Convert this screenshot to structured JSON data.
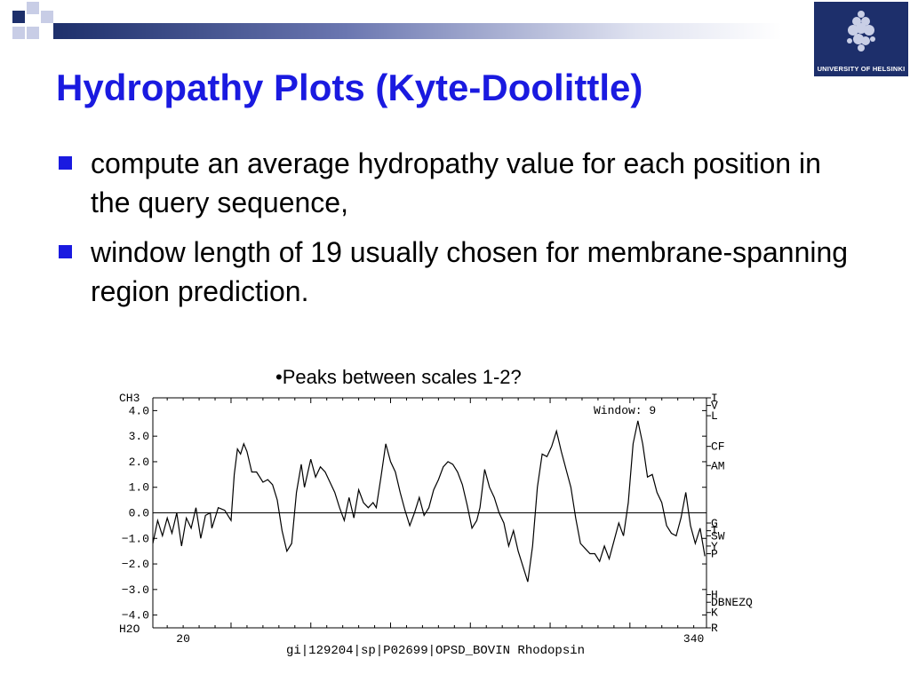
{
  "slide": {
    "title": "Hydropathy Plots (Kyte-Doolittle)",
    "bullets": [
      "compute an average hydropathy value for each position in the query sequence,",
      "window length of 19 usually chosen for membrane-spanning region prediction."
    ],
    "caption": "•Peaks between scales 1-2?",
    "logo_text": "UNIVERSITY OF HELSINKI",
    "colors": {
      "title": "#1a1ae0",
      "bullet": "#1a1ae0",
      "logo_bg": "#1d2f6b"
    }
  },
  "chart_data": {
    "type": "line",
    "top_label": "CH3",
    "bottom_label": "H2O",
    "window_label": "Window: 9",
    "xlabel": "gi|129204|sp|P02699|OPSD_BOVIN Rhodopsin",
    "x_tick_labels": [
      "20",
      "340"
    ],
    "xlim": [
      1,
      348
    ],
    "ylim": [
      -4.5,
      4.5
    ],
    "y_tick_labels": [
      "4.0",
      "3.0",
      "2.0",
      "1.0",
      "0.0",
      "−1.0",
      "−2.0",
      "−3.0",
      "−4.0"
    ],
    "y_ticks": [
      4,
      3,
      2,
      1,
      0,
      -1,
      -2,
      -3,
      -4
    ],
    "zero_line": true,
    "right_axis_labels": [
      {
        "text": "I",
        "y": 4.5
      },
      {
        "text": "V",
        "y": 4.2
      },
      {
        "text": "L",
        "y": 3.8
      },
      {
        "text": "CF",
        "y": 2.6
      },
      {
        "text": "AM",
        "y": 1.85
      },
      {
        "text": "G",
        "y": -0.4
      },
      {
        "text": "T",
        "y": -0.7
      },
      {
        "text": "SW",
        "y": -0.9
      },
      {
        "text": "Y",
        "y": -1.3
      },
      {
        "text": "P",
        "y": -1.6
      },
      {
        "text": "H",
        "y": -3.2
      },
      {
        "text": "DBNEZQ",
        "y": -3.5
      },
      {
        "text": "K",
        "y": -3.9
      },
      {
        "text": "R",
        "y": -4.5
      }
    ],
    "series": [
      {
        "x": [
          1,
          4,
          7,
          10,
          13,
          16,
          19,
          22,
          25,
          28,
          31,
          34,
          37,
          38,
          42,
          46,
          50,
          52,
          54,
          56,
          58,
          60,
          63,
          66,
          70,
          73,
          76,
          79,
          82,
          85,
          88,
          91,
          94,
          96,
          100,
          103,
          106,
          109,
          112,
          115,
          118,
          121,
          124,
          127,
          130,
          133,
          136,
          139,
          141,
          144,
          147,
          150,
          153,
          156,
          159,
          162,
          165,
          168,
          171,
          174,
          177,
          180,
          183,
          186,
          189,
          192,
          195,
          198,
          201,
          204,
          206,
          209,
          212,
          215,
          218,
          221,
          224,
          227,
          230,
          233,
          236,
          239,
          242,
          245,
          248,
          251,
          254,
          257,
          260,
          263,
          266,
          269,
          272,
          275,
          278,
          281,
          284,
          287,
          290,
          293,
          296,
          299,
          302,
          305,
          308,
          311,
          314,
          317,
          320,
          323,
          326,
          329,
          332,
          335,
          338,
          341,
          344,
          347
        ],
        "y": [
          -1.2,
          -0.3,
          -0.9,
          -0.2,
          -0.8,
          0.0,
          -1.3,
          -0.2,
          -0.6,
          0.2,
          -1.0,
          -0.1,
          0.0,
          -0.6,
          0.2,
          0.1,
          -0.3,
          1.5,
          2.5,
          2.3,
          2.7,
          2.4,
          1.6,
          1.6,
          1.2,
          1.3,
          1.1,
          0.5,
          -0.7,
          -1.5,
          -1.2,
          0.8,
          1.9,
          1.0,
          2.1,
          1.4,
          1.8,
          1.6,
          1.2,
          0.8,
          0.2,
          -0.3,
          0.6,
          -0.2,
          0.9,
          0.4,
          0.2,
          0.4,
          0.2,
          1.4,
          2.7,
          2.0,
          1.6,
          0.8,
          0.1,
          -0.5,
          0.0,
          0.6,
          -0.1,
          0.2,
          0.9,
          1.3,
          1.8,
          2.0,
          1.9,
          1.6,
          1.1,
          0.3,
          -0.6,
          -0.3,
          0.2,
          1.7,
          1.0,
          0.6,
          0.0,
          -0.4,
          -1.3,
          -0.7,
          -1.5,
          -2.1,
          -2.7,
          -1.3,
          1.0,
          2.3,
          2.2,
          2.6,
          3.2,
          2.4,
          1.7,
          1.0,
          -0.2,
          -1.2,
          -1.4,
          -1.6,
          -1.6,
          -1.9,
          -1.3,
          -1.8,
          -1.1,
          -0.4,
          -0.9,
          0.4,
          2.7,
          3.6,
          2.7,
          1.4,
          1.5,
          0.8,
          0.4,
          -0.5,
          -0.8,
          -0.9,
          -0.2,
          0.8,
          -0.5,
          -1.2,
          -0.6,
          -1.7
        ]
      }
    ]
  }
}
